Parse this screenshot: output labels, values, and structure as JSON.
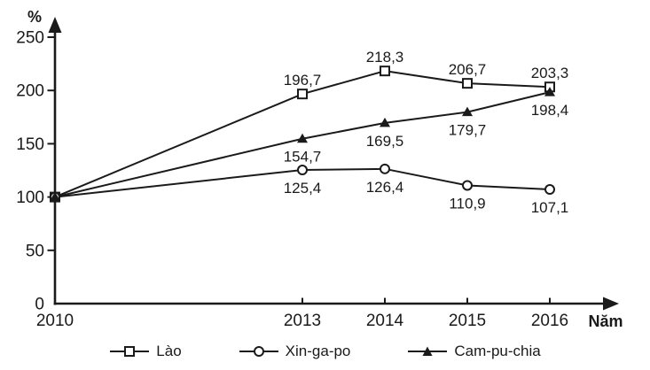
{
  "chart_data": {
    "type": "line",
    "title": "",
    "x": [
      2010,
      2013,
      2014,
      2015,
      2016
    ],
    "x_axis": {
      "label": "Năm",
      "ticks": [
        "2010",
        "2013",
        "2014",
        "2015",
        "2016"
      ]
    },
    "y_axis": {
      "label": "%",
      "ticks": [
        0,
        50,
        100,
        150,
        200,
        250
      ],
      "range": [
        0,
        265
      ]
    },
    "grid": false,
    "legend_position": "bottom",
    "colors": {
      "line": "#1a1a1a",
      "marker_fill": "#ffffff",
      "text": "#1a1a1a",
      "background": "#ffffff"
    },
    "series": [
      {
        "name": "Lào",
        "marker": "square-open",
        "label_position": "above",
        "values": [
          100,
          196.7,
          218.3,
          206.7,
          203.3
        ],
        "point_labels": [
          "",
          "196,7",
          "218,3",
          "206,7",
          "203,3"
        ]
      },
      {
        "name": "Xin-ga-po",
        "marker": "circle-open",
        "label_position": "below",
        "values": [
          100,
          125.4,
          126.4,
          110.9,
          107.1
        ],
        "point_labels": [
          "",
          "125,4",
          "126,4",
          "110,9",
          "107,1"
        ]
      },
      {
        "name": "Cam-pu-chia",
        "marker": "triangle-filled",
        "label_position": "below",
        "values": [
          100,
          154.7,
          169.5,
          179.7,
          198.4
        ],
        "point_labels": [
          "",
          "154,7",
          "169,5",
          "179,7",
          "198,4"
        ]
      }
    ]
  }
}
